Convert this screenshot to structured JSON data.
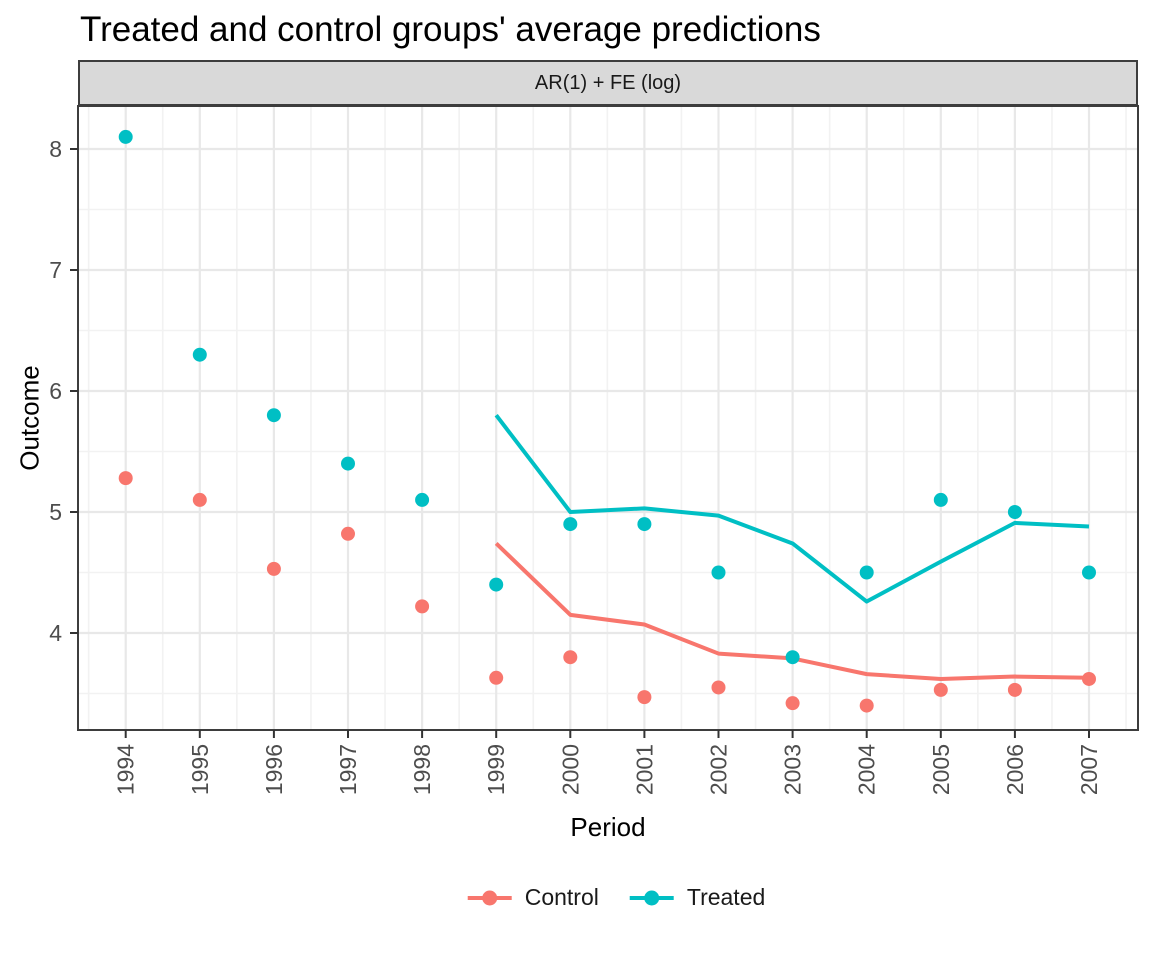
{
  "title": "Treated and control groups' average predictions",
  "facet": {
    "label": "AR(1) + FE (log)"
  },
  "axes": {
    "x_title": "Period",
    "y_title": "Outcome"
  },
  "legend": {
    "position": "bottom",
    "items": [
      {
        "label": "Control",
        "color": "#F8766D"
      },
      {
        "label": "Treated",
        "color": "#00BFC4"
      }
    ]
  },
  "theme": {
    "strip_fill": "#D9D9D9",
    "panel_border": "#3D3D3D",
    "grid_major": "#E8E8E8",
    "grid_minor": "#F2F2F2",
    "tick_color": "#333333",
    "tick_label_color": "#4D4D4D",
    "panel_bg": "#FFFFFF"
  },
  "chart_data": {
    "type": "scatter+line",
    "title": "Treated and control groups' average predictions",
    "facet_label": "AR(1) + FE (log)",
    "xlabel": "Period",
    "ylabel": "Outcome",
    "x_ticks": [
      1994,
      1995,
      1996,
      1997,
      1998,
      1999,
      2000,
      2001,
      2002,
      2003,
      2004,
      2005,
      2006,
      2007
    ],
    "y_ticks": [
      4,
      5,
      6,
      7,
      8
    ],
    "y_minor_ticks": [
      3.5,
      4.5,
      5.5,
      6.5,
      7.5
    ],
    "x_minor_step": 0.5,
    "xlim": [
      1993.35,
      2007.65
    ],
    "ylim": [
      3.2,
      8.36
    ],
    "grid": {
      "major": true,
      "minor": true
    },
    "legend_position": "bottom",
    "series": [
      {
        "name": "Control",
        "geom": "points",
        "color": "#F8766D",
        "x": [
          1994,
          1995,
          1996,
          1997,
          1998,
          1999,
          2000,
          2001,
          2002,
          2003,
          2004,
          2005,
          2006,
          2007
        ],
        "y": [
          5.28,
          5.1,
          4.53,
          4.82,
          4.22,
          3.63,
          3.8,
          3.47,
          3.55,
          3.42,
          3.4,
          3.53,
          3.53,
          3.62
        ]
      },
      {
        "name": "Treated",
        "geom": "points",
        "color": "#00BFC4",
        "x": [
          1994,
          1995,
          1996,
          1997,
          1998,
          1999,
          2000,
          2001,
          2002,
          2003,
          2004,
          2005,
          2006,
          2007
        ],
        "y": [
          8.1,
          6.3,
          5.8,
          5.4,
          5.1,
          4.4,
          4.9,
          4.9,
          4.5,
          3.8,
          4.5,
          5.1,
          5.0,
          4.5
        ]
      },
      {
        "name": "Control",
        "geom": "line",
        "color": "#F8766D",
        "x": [
          1999,
          2000,
          2001,
          2002,
          2003,
          2004,
          2005,
          2006,
          2007
        ],
        "y": [
          4.74,
          4.15,
          4.07,
          3.83,
          3.79,
          3.66,
          3.62,
          3.64,
          3.63
        ]
      },
      {
        "name": "Treated",
        "geom": "line",
        "color": "#00BFC4",
        "x": [
          1999,
          2000,
          2001,
          2002,
          2003,
          2004,
          2005,
          2006,
          2007
        ],
        "y": [
          5.8,
          5.0,
          5.03,
          4.97,
          4.74,
          4.26,
          4.59,
          4.91,
          4.88
        ]
      }
    ]
  }
}
